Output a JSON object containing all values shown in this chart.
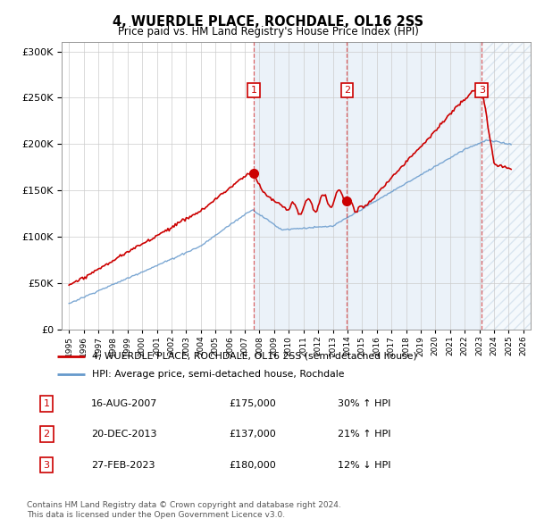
{
  "title": "4, WUERDLE PLACE, ROCHDALE, OL16 2SS",
  "subtitle": "Price paid vs. HM Land Registry's House Price Index (HPI)",
  "legend_line1": "4, WUERDLE PLACE, ROCHDALE, OL16 2SS (semi-detached house)",
  "legend_line2": "HPI: Average price, semi-detached house, Rochdale",
  "footer1": "Contains HM Land Registry data © Crown copyright and database right 2024.",
  "footer2": "This data is licensed under the Open Government Licence v3.0.",
  "transactions": [
    {
      "num": 1,
      "date": "16-AUG-2007",
      "price": "£175,000",
      "hpi": "30% ↑ HPI"
    },
    {
      "num": 2,
      "date": "20-DEC-2013",
      "price": "£137,000",
      "hpi": "21% ↑ HPI"
    },
    {
      "num": 3,
      "date": "27-FEB-2023",
      "price": "£180,000",
      "hpi": "12% ↓ HPI"
    }
  ],
  "transaction_years": [
    2007.62,
    2013.97,
    2023.16
  ],
  "transaction_prices": [
    175000,
    137000,
    180000
  ],
  "ylim": [
    0,
    310000
  ],
  "xlim": [
    1994.5,
    2026.5
  ],
  "red_color": "#cc0000",
  "blue_color": "#6699cc",
  "shade_color": "#ddeeff",
  "hatch_color": "#ccddee",
  "bg_color": "#ffffff"
}
